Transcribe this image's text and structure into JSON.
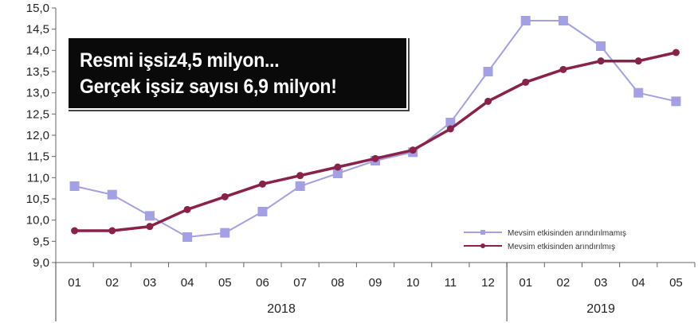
{
  "headline": {
    "line1": "Resmi işsiz4,5 milyon...",
    "line2": "Gerçek işsiz sayısı 6,9 milyon!"
  },
  "chart_data": {
    "type": "line",
    "categories": [
      "01",
      "02",
      "03",
      "04",
      "05",
      "06",
      "07",
      "08",
      "09",
      "10",
      "11",
      "12",
      "01",
      "02",
      "03",
      "04",
      "05"
    ],
    "year_groups": [
      {
        "label": "2018",
        "start": 0,
        "end": 11
      },
      {
        "label": "2019",
        "start": 12,
        "end": 16
      }
    ],
    "ylim": [
      9.0,
      15.0
    ],
    "yticks": [
      9.0,
      9.5,
      10.0,
      10.5,
      11.0,
      11.5,
      12.0,
      12.5,
      13.0,
      13.5,
      14.0,
      14.5,
      15.0
    ],
    "ytick_labels": [
      "9,0",
      "9,5",
      "10,0",
      "10,5",
      "11,0",
      "11,5",
      "12,0",
      "12,5",
      "13,0",
      "13,5",
      "14,0",
      "14,5",
      "15,0"
    ],
    "series": [
      {
        "name": "Mevsim etkisinden arındırılmamış",
        "color": "#a3a0e3",
        "marker": "square",
        "values": [
          10.8,
          10.6,
          10.1,
          9.6,
          9.7,
          10.2,
          10.8,
          11.1,
          11.4,
          11.6,
          12.3,
          13.5,
          14.7,
          14.7,
          14.1,
          13.0,
          12.8
        ]
      },
      {
        "name": "Mevsim etkisinden arındırılmış",
        "color": "#8a2148",
        "marker": "circle",
        "values": [
          9.75,
          9.75,
          9.85,
          10.25,
          10.55,
          10.85,
          11.05,
          11.25,
          11.45,
          11.65,
          12.15,
          12.8,
          13.25,
          13.55,
          13.75,
          13.75,
          13.95
        ]
      }
    ],
    "legend_position": "bottom-right",
    "grid": false
  }
}
